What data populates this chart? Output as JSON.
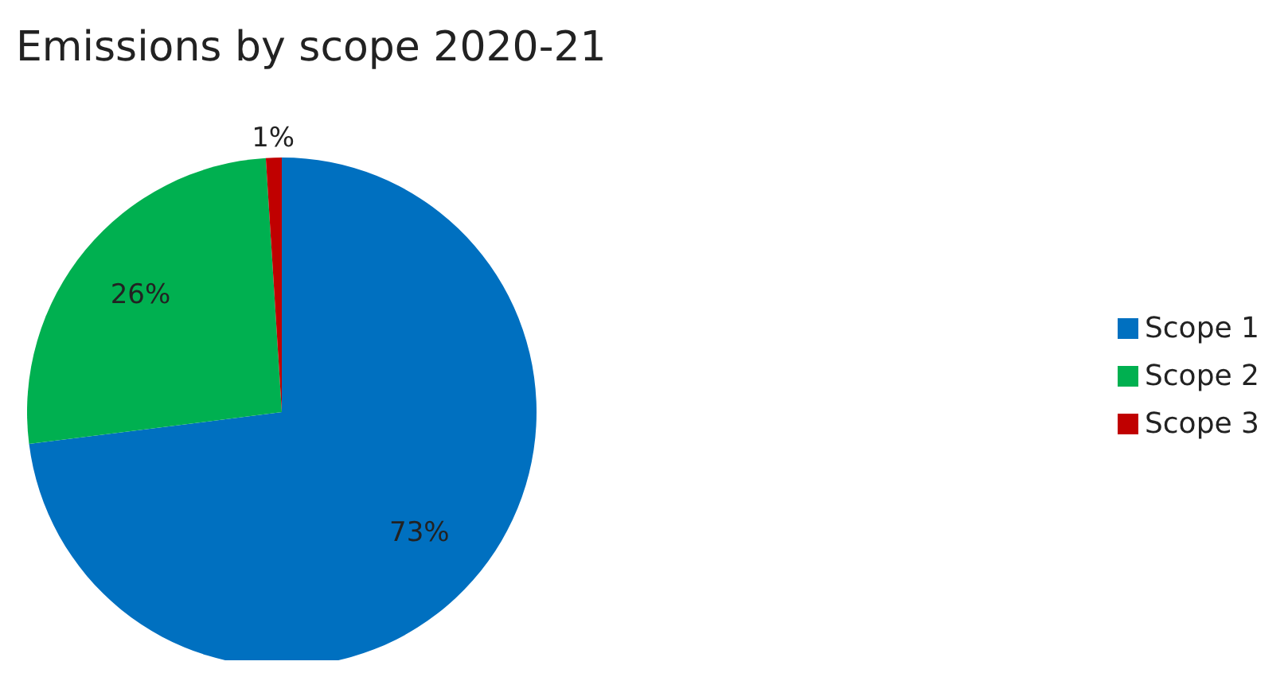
{
  "chart_data": {
    "type": "pie",
    "title": "Emissions by scope 2020-21",
    "categories": [
      "Scope 1",
      "Scope 2",
      "Scope 3"
    ],
    "values": [
      73,
      26,
      1
    ],
    "colors": [
      "#0070c0",
      "#00b050",
      "#c00000"
    ],
    "value_labels": [
      "73%",
      "26%",
      "1%"
    ],
    "legend": "right"
  }
}
